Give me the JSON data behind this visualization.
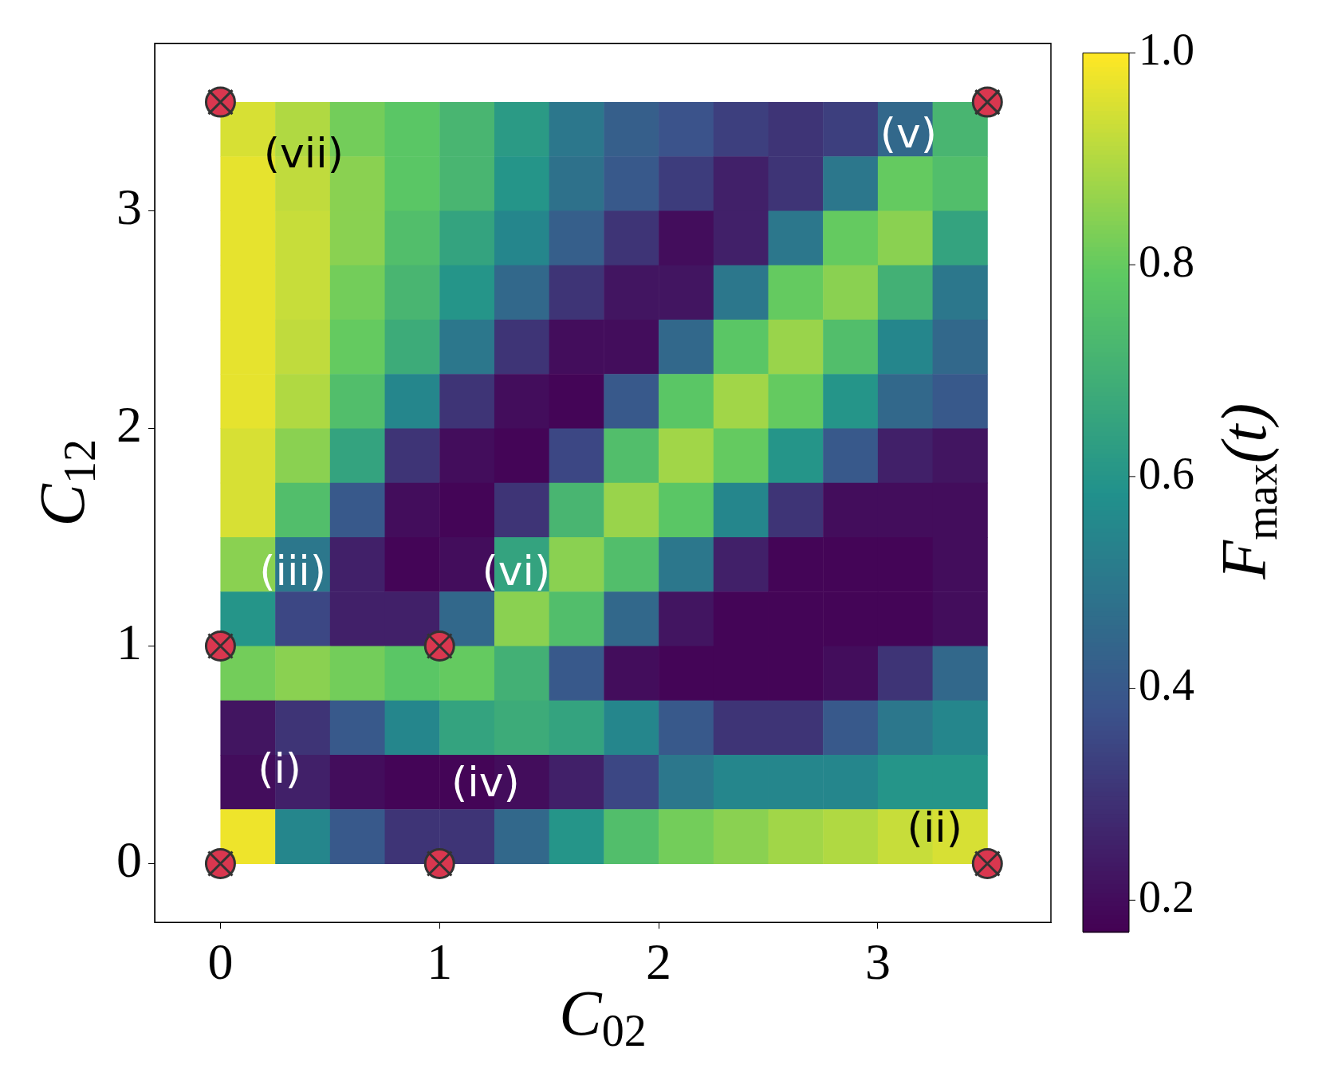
{
  "chart_data": {
    "type": "heatmap",
    "xlabel": "C$_{02}$",
    "ylabel": "C$_{12}$",
    "clabel": "F$_{max}$(t)",
    "x": [
      0.125,
      0.375,
      0.625,
      0.875,
      1.125,
      1.375,
      1.625,
      1.875,
      2.125,
      2.375,
      2.625,
      2.875,
      3.125,
      3.375
    ],
    "y": [
      3.375,
      3.125,
      2.875,
      2.625,
      2.375,
      2.125,
      1.875,
      1.625,
      1.375,
      1.125,
      0.875,
      0.625,
      0.375,
      0.125
    ],
    "cells": [
      [
        0.95,
        0.9,
        0.82,
        0.78,
        0.72,
        0.62,
        0.5,
        0.42,
        0.38,
        0.33,
        0.3,
        0.33,
        0.45,
        0.72
      ],
      [
        0.97,
        0.92,
        0.85,
        0.78,
        0.72,
        0.6,
        0.48,
        0.4,
        0.32,
        0.25,
        0.3,
        0.5,
        0.8,
        0.75
      ],
      [
        0.97,
        0.93,
        0.85,
        0.75,
        0.65,
        0.55,
        0.42,
        0.3,
        0.2,
        0.25,
        0.5,
        0.8,
        0.85,
        0.65
      ],
      [
        0.97,
        0.93,
        0.82,
        0.72,
        0.6,
        0.45,
        0.3,
        0.22,
        0.22,
        0.5,
        0.8,
        0.85,
        0.7,
        0.5
      ],
      [
        0.97,
        0.92,
        0.8,
        0.68,
        0.5,
        0.3,
        0.2,
        0.2,
        0.45,
        0.78,
        0.87,
        0.75,
        0.55,
        0.45
      ],
      [
        0.97,
        0.9,
        0.75,
        0.55,
        0.3,
        0.2,
        0.18,
        0.4,
        0.78,
        0.88,
        0.8,
        0.6,
        0.45,
        0.4
      ],
      [
        0.95,
        0.85,
        0.65,
        0.3,
        0.2,
        0.18,
        0.35,
        0.75,
        0.88,
        0.8,
        0.6,
        0.4,
        0.25,
        0.22
      ],
      [
        0.95,
        0.75,
        0.4,
        0.2,
        0.18,
        0.3,
        0.72,
        0.87,
        0.78,
        0.55,
        0.3,
        0.2,
        0.2,
        0.2
      ],
      [
        0.85,
        0.5,
        0.25,
        0.18,
        0.2,
        0.65,
        0.85,
        0.75,
        0.5,
        0.25,
        0.18,
        0.18,
        0.18,
        0.2
      ],
      [
        0.6,
        0.35,
        0.25,
        0.25,
        0.45,
        0.85,
        0.75,
        0.45,
        0.22,
        0.18,
        0.18,
        0.18,
        0.18,
        0.2
      ],
      [
        0.82,
        0.85,
        0.82,
        0.78,
        0.8,
        0.7,
        0.4,
        0.2,
        0.18,
        0.18,
        0.18,
        0.2,
        0.3,
        0.45
      ],
      [
        0.22,
        0.3,
        0.4,
        0.55,
        0.65,
        0.68,
        0.65,
        0.55,
        0.4,
        0.3,
        0.3,
        0.4,
        0.5,
        0.55
      ],
      [
        0.2,
        0.25,
        0.2,
        0.18,
        0.18,
        0.2,
        0.25,
        0.35,
        0.5,
        0.55,
        0.55,
        0.55,
        0.6,
        0.6
      ],
      [
        0.98,
        0.55,
        0.4,
        0.3,
        0.3,
        0.45,
        0.6,
        0.75,
        0.82,
        0.85,
        0.88,
        0.9,
        0.93,
        0.95
      ]
    ],
    "clim": [
      0.17,
      1.0
    ],
    "cticks": [
      0.2,
      0.4,
      0.6,
      0.8,
      {
        "value": 1.0,
        "label": "1.0"
      }
    ],
    "xlim": [
      -0.3,
      3.79
    ],
    "ylim": [
      -0.27,
      3.77
    ],
    "xticks": [
      0,
      1,
      2,
      3
    ],
    "yticks": [
      0,
      1,
      2,
      3
    ],
    "series": [
      {
        "type": "scatter",
        "color": "#d9374f",
        "marker": "circle",
        "x": [
          0,
          1,
          3.5,
          0,
          1,
          0,
          3.5
        ],
        "values": [
          0,
          0,
          0,
          1,
          1,
          3.5,
          3.5
        ]
      }
    ],
    "annotations": [
      "(vii)",
      "(v)",
      "(iii)",
      "(vi)",
      "(i)",
      "(iv)",
      "(ii)"
    ]
  }
}
